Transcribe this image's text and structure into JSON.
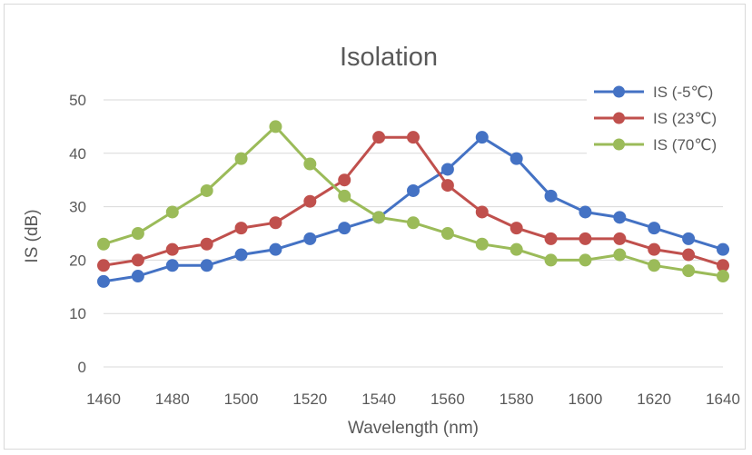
{
  "chart_data": {
    "type": "line",
    "title": "Isolation",
    "xlabel": "Wavelength (nm)",
    "ylabel": "IS (dB)",
    "x": [
      1460,
      1470,
      1480,
      1490,
      1500,
      1510,
      1520,
      1530,
      1540,
      1550,
      1560,
      1570,
      1580,
      1590,
      1600,
      1610,
      1620,
      1630,
      1640
    ],
    "xticks": [
      "1460",
      "1480",
      "1500",
      "1520",
      "1540",
      "1560",
      "1580",
      "1600",
      "1620",
      "1640"
    ],
    "yticks": [
      "0",
      "10",
      "20",
      "30",
      "40",
      "50"
    ],
    "xlim": [
      1460,
      1640
    ],
    "ylim": [
      0,
      50
    ],
    "grid": "horizontal",
    "legend_position": "top-right",
    "series": [
      {
        "name": "IS  (-5℃)",
        "color": "#4472c4",
        "values": [
          16,
          17,
          19,
          19,
          21,
          22,
          24,
          26,
          28,
          33,
          37,
          43,
          39,
          32,
          29,
          28,
          26,
          24,
          22
        ]
      },
      {
        "name": "IS  (23℃)",
        "color": "#c0504d",
        "values": [
          19,
          20,
          22,
          23,
          26,
          27,
          31,
          35,
          43,
          43,
          34,
          29,
          26,
          24,
          24,
          24,
          22,
          21,
          19
        ]
      },
      {
        "name": "IS  (70℃)",
        "color": "#9bbb59",
        "values": [
          23,
          25,
          29,
          33,
          39,
          45,
          38,
          32,
          28,
          27,
          25,
          23,
          22,
          20,
          20,
          21,
          19,
          18,
          17
        ]
      }
    ]
  }
}
